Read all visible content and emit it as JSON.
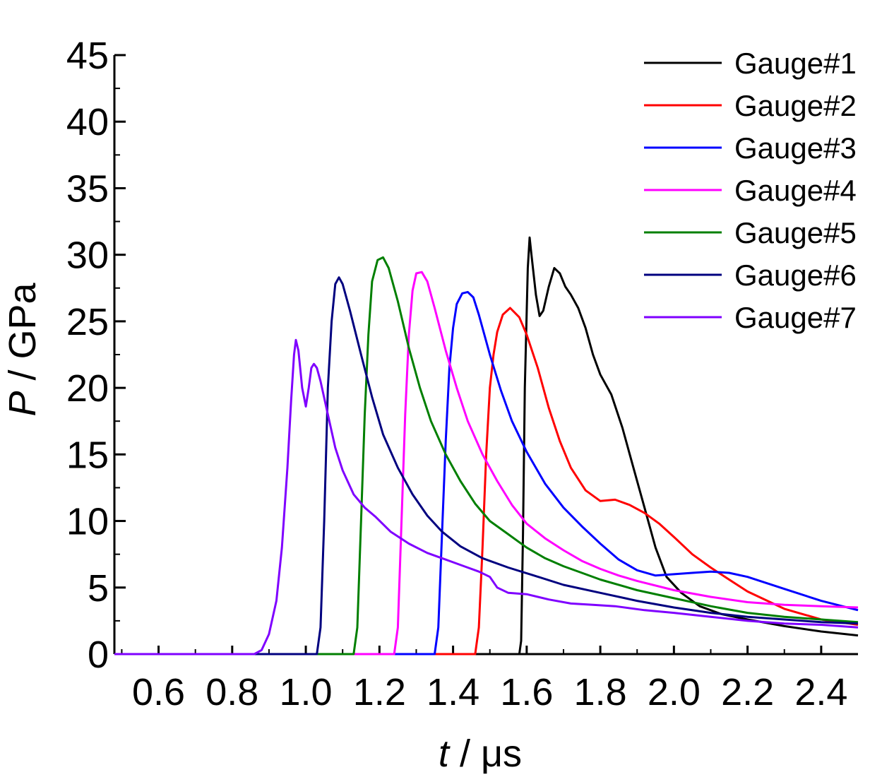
{
  "chart_data": {
    "type": "line",
    "xlabel_var": "t",
    "xlabel_unit": " / μs",
    "ylabel_var": "P",
    "ylabel_unit": " / GPa",
    "xlim": [
      0.48,
      2.5
    ],
    "ylim": [
      0,
      45
    ],
    "xticks": [
      "0.6",
      "0.8",
      "1.0",
      "1.2",
      "1.4",
      "1.6",
      "1.8",
      "2.0",
      "2.2",
      "2.4"
    ],
    "yticks": [
      "0",
      "5",
      "10",
      "15",
      "20",
      "25",
      "30",
      "35",
      "40",
      "45"
    ],
    "legend_position": "top-right",
    "series": [
      {
        "name": "Gauge#1",
        "color": "#000000",
        "points": [
          [
            0.48,
            0
          ],
          [
            1.58,
            0
          ],
          [
            1.585,
            1
          ],
          [
            1.59,
            9
          ],
          [
            1.595,
            20
          ],
          [
            1.603,
            29
          ],
          [
            1.608,
            31.3
          ],
          [
            1.613,
            30
          ],
          [
            1.625,
            27
          ],
          [
            1.635,
            25.4
          ],
          [
            1.645,
            25.8
          ],
          [
            1.66,
            27.6
          ],
          [
            1.675,
            29
          ],
          [
            1.69,
            28.6
          ],
          [
            1.705,
            27.6
          ],
          [
            1.72,
            27
          ],
          [
            1.74,
            26
          ],
          [
            1.76,
            24.5
          ],
          [
            1.78,
            22.5
          ],
          [
            1.8,
            21
          ],
          [
            1.83,
            19.5
          ],
          [
            1.86,
            17
          ],
          [
            1.89,
            14
          ],
          [
            1.92,
            11
          ],
          [
            1.95,
            8
          ],
          [
            1.98,
            5.8
          ],
          [
            2.02,
            4.6
          ],
          [
            2.07,
            3.6
          ],
          [
            2.13,
            3
          ],
          [
            2.2,
            2.6
          ],
          [
            2.3,
            2.1
          ],
          [
            2.4,
            1.7
          ],
          [
            2.5,
            1.4
          ]
        ]
      },
      {
        "name": "Gauge#2",
        "color": "#ff0000",
        "points": [
          [
            0.48,
            0
          ],
          [
            1.46,
            0
          ],
          [
            1.47,
            2
          ],
          [
            1.48,
            8
          ],
          [
            1.49,
            15
          ],
          [
            1.5,
            20
          ],
          [
            1.51,
            22.5
          ],
          [
            1.52,
            24.2
          ],
          [
            1.535,
            25.5
          ],
          [
            1.555,
            26
          ],
          [
            1.58,
            25.3
          ],
          [
            1.6,
            24
          ],
          [
            1.63,
            21.5
          ],
          [
            1.66,
            18.5
          ],
          [
            1.69,
            16
          ],
          [
            1.72,
            14
          ],
          [
            1.76,
            12.3
          ],
          [
            1.8,
            11.5
          ],
          [
            1.84,
            11.6
          ],
          [
            1.88,
            11.2
          ],
          [
            1.92,
            10.6
          ],
          [
            1.96,
            9.8
          ],
          [
            2.0,
            8.8
          ],
          [
            2.05,
            7.5
          ],
          [
            2.1,
            6.5
          ],
          [
            2.15,
            5.6
          ],
          [
            2.2,
            4.7
          ],
          [
            2.3,
            3.4
          ],
          [
            2.4,
            2.6
          ],
          [
            2.5,
            2.2
          ]
        ]
      },
      {
        "name": "Gauge#3",
        "color": "#0000ff",
        "points": [
          [
            0.48,
            0
          ],
          [
            1.35,
            0
          ],
          [
            1.36,
            2
          ],
          [
            1.37,
            9
          ],
          [
            1.38,
            16
          ],
          [
            1.39,
            21.5
          ],
          [
            1.4,
            24.5
          ],
          [
            1.41,
            26.3
          ],
          [
            1.425,
            27.1
          ],
          [
            1.44,
            27.2
          ],
          [
            1.455,
            26.8
          ],
          [
            1.47,
            25.5
          ],
          [
            1.5,
            22.5
          ],
          [
            1.53,
            19.8
          ],
          [
            1.56,
            17.5
          ],
          [
            1.6,
            15.2
          ],
          [
            1.65,
            12.8
          ],
          [
            1.7,
            11
          ],
          [
            1.75,
            9.6
          ],
          [
            1.8,
            8.3
          ],
          [
            1.85,
            7.1
          ],
          [
            1.9,
            6.3
          ],
          [
            1.95,
            5.9
          ],
          [
            2.0,
            6
          ],
          [
            2.05,
            6.1
          ],
          [
            2.1,
            6.2
          ],
          [
            2.15,
            6.1
          ],
          [
            2.2,
            5.8
          ],
          [
            2.3,
            4.9
          ],
          [
            2.4,
            4
          ],
          [
            2.5,
            3.3
          ]
        ]
      },
      {
        "name": "Gauge#4",
        "color": "#ff00ff",
        "points": [
          [
            0.48,
            0
          ],
          [
            1.24,
            0
          ],
          [
            1.25,
            2
          ],
          [
            1.26,
            10
          ],
          [
            1.27,
            18
          ],
          [
            1.28,
            24
          ],
          [
            1.29,
            27.3
          ],
          [
            1.3,
            28.6
          ],
          [
            1.315,
            28.7
          ],
          [
            1.33,
            28
          ],
          [
            1.35,
            26
          ],
          [
            1.38,
            22.8
          ],
          [
            1.41,
            20
          ],
          [
            1.44,
            17.5
          ],
          [
            1.48,
            15
          ],
          [
            1.52,
            13
          ],
          [
            1.56,
            11.2
          ],
          [
            1.6,
            9.8
          ],
          [
            1.65,
            8.7
          ],
          [
            1.7,
            7.8
          ],
          [
            1.75,
            7
          ],
          [
            1.8,
            6.4
          ],
          [
            1.85,
            5.9
          ],
          [
            1.9,
            5.5
          ],
          [
            2.0,
            4.8
          ],
          [
            2.1,
            4.3
          ],
          [
            2.2,
            3.9
          ],
          [
            2.3,
            3.7
          ],
          [
            2.4,
            3.6
          ],
          [
            2.5,
            3.5
          ]
        ]
      },
      {
        "name": "Gauge#5",
        "color": "#007f00",
        "points": [
          [
            0.48,
            0
          ],
          [
            1.13,
            0
          ],
          [
            1.14,
            2
          ],
          [
            1.15,
            10
          ],
          [
            1.16,
            18
          ],
          [
            1.17,
            24
          ],
          [
            1.18,
            28
          ],
          [
            1.195,
            29.6
          ],
          [
            1.21,
            29.8
          ],
          [
            1.225,
            29
          ],
          [
            1.25,
            26.5
          ],
          [
            1.28,
            23
          ],
          [
            1.31,
            20
          ],
          [
            1.34,
            17.5
          ],
          [
            1.38,
            15
          ],
          [
            1.42,
            13
          ],
          [
            1.46,
            11.3
          ],
          [
            1.5,
            10
          ],
          [
            1.55,
            9
          ],
          [
            1.6,
            8
          ],
          [
            1.65,
            7.2
          ],
          [
            1.7,
            6.6
          ],
          [
            1.75,
            6.1
          ],
          [
            1.8,
            5.6
          ],
          [
            1.9,
            4.8
          ],
          [
            2.0,
            4.2
          ],
          [
            2.1,
            3.6
          ],
          [
            2.2,
            3.1
          ],
          [
            2.3,
            2.8
          ],
          [
            2.4,
            2.6
          ],
          [
            2.5,
            2.4
          ]
        ]
      },
      {
        "name": "Gauge#6",
        "color": "#00007f",
        "points": [
          [
            0.48,
            0
          ],
          [
            1.03,
            0
          ],
          [
            1.04,
            2
          ],
          [
            1.05,
            10
          ],
          [
            1.06,
            20
          ],
          [
            1.07,
            25
          ],
          [
            1.08,
            27.8
          ],
          [
            1.09,
            28.3
          ],
          [
            1.1,
            27.8
          ],
          [
            1.12,
            25.8
          ],
          [
            1.15,
            22.5
          ],
          [
            1.18,
            19.3
          ],
          [
            1.21,
            16.5
          ],
          [
            1.25,
            14
          ],
          [
            1.29,
            12
          ],
          [
            1.33,
            10.4
          ],
          [
            1.37,
            9.2
          ],
          [
            1.42,
            8.1
          ],
          [
            1.48,
            7.2
          ],
          [
            1.55,
            6.5
          ],
          [
            1.62,
            5.9
          ],
          [
            1.7,
            5.2
          ],
          [
            1.8,
            4.6
          ],
          [
            1.9,
            4
          ],
          [
            2.0,
            3.5
          ],
          [
            2.1,
            3.1
          ],
          [
            2.2,
            2.8
          ],
          [
            2.3,
            2.6
          ],
          [
            2.4,
            2.4
          ],
          [
            2.5,
            2.3
          ]
        ]
      },
      {
        "name": "Gauge#7",
        "color": "#7f00ff",
        "points": [
          [
            0.48,
            0
          ],
          [
            0.86,
            0
          ],
          [
            0.88,
            0.3
          ],
          [
            0.9,
            1.5
          ],
          [
            0.92,
            4
          ],
          [
            0.935,
            8
          ],
          [
            0.95,
            14
          ],
          [
            0.96,
            19
          ],
          [
            0.968,
            22.5
          ],
          [
            0.973,
            23.6
          ],
          [
            0.98,
            22.8
          ],
          [
            0.99,
            20
          ],
          [
            1.0,
            18.6
          ],
          [
            1.008,
            20
          ],
          [
            1.015,
            21.5
          ],
          [
            1.022,
            21.8
          ],
          [
            1.03,
            21.5
          ],
          [
            1.04,
            20.5
          ],
          [
            1.06,
            18
          ],
          [
            1.08,
            15.5
          ],
          [
            1.1,
            13.8
          ],
          [
            1.13,
            12
          ],
          [
            1.16,
            11
          ],
          [
            1.19,
            10.3
          ],
          [
            1.23,
            9.2
          ],
          [
            1.28,
            8.3
          ],
          [
            1.33,
            7.6
          ],
          [
            1.38,
            7.1
          ],
          [
            1.43,
            6.6
          ],
          [
            1.47,
            6.2
          ],
          [
            1.5,
            5.8
          ],
          [
            1.52,
            5.0
          ],
          [
            1.55,
            4.6
          ],
          [
            1.6,
            4.5
          ],
          [
            1.66,
            4.1
          ],
          [
            1.72,
            3.8
          ],
          [
            1.78,
            3.7
          ],
          [
            1.84,
            3.6
          ],
          [
            1.92,
            3.3
          ],
          [
            2.0,
            3.1
          ],
          [
            2.1,
            2.8
          ],
          [
            2.2,
            2.5
          ],
          [
            2.3,
            2.3
          ],
          [
            2.4,
            2.2
          ],
          [
            2.5,
            2.0
          ]
        ]
      }
    ]
  }
}
